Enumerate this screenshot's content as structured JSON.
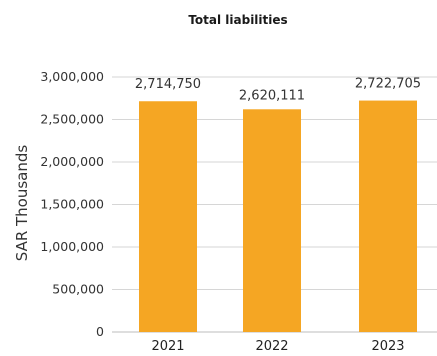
{
  "chart_data": {
    "type": "bar",
    "title": "Total liabilities",
    "ylabel": "SAR Thousands",
    "xlabel": "",
    "categories": [
      "2021",
      "2022",
      "2023"
    ],
    "values": [
      2714750,
      2620111,
      2722705
    ],
    "value_labels": [
      "2,714,750",
      "2,620,111",
      "2,722,705"
    ],
    "ylim": [
      0,
      3000000
    ],
    "yticks": [
      0,
      500000,
      1000000,
      1500000,
      2000000,
      2500000,
      3000000
    ],
    "ytick_labels": [
      "0",
      "500,000",
      "1,000,000",
      "1,500,000",
      "2,000,000",
      "2,500,000",
      "3,000,000"
    ],
    "grid": true,
    "bar_color": "#F5A623"
  }
}
